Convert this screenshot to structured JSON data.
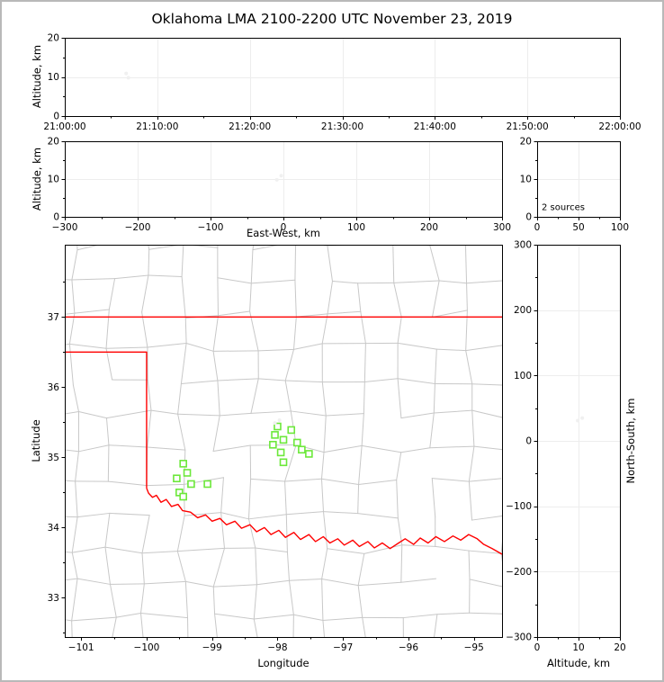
{
  "title": "Oklahoma LMA 2100-2200 UTC November 23, 2019",
  "colors": {
    "state_border": "#ff0000",
    "county_lines": "#c8c8c8",
    "stations": "#6ce83a",
    "sources": "#f0f0f0",
    "grid": "#ededed",
    "frame": "#000000"
  },
  "chart_data": [
    {
      "id": "time-height",
      "type": "scatter",
      "xlabel": "",
      "ylabel": "Altitude, km",
      "xlim": [
        "21:00:00",
        "22:00:00"
      ],
      "ylim": [
        0,
        20
      ],
      "x_tick_labels": [
        "21:00:00",
        "21:10:00",
        "21:20:00",
        "21:30:00",
        "21:40:00",
        "21:50:00",
        "22:00:00"
      ],
      "x_tick_seconds": [
        0,
        600,
        1200,
        1800,
        2400,
        3000,
        3600
      ],
      "x_minor_seconds": [
        300,
        900,
        1500,
        2100,
        2700,
        3300
      ],
      "y_tick_values": [
        0,
        10,
        20
      ],
      "y_tick_labels": [
        "0",
        "10",
        "20"
      ],
      "y_minor_values": [
        5,
        15
      ],
      "grid_x_seconds": [
        600,
        1200,
        1800,
        2400,
        3000
      ],
      "grid_y_values": [
        10
      ],
      "points": [
        {
          "time": "21:06:38",
          "seconds": 398,
          "altitude_km": 10.9
        },
        {
          "time": "21:06:52",
          "seconds": 412,
          "altitude_km": 9.8
        }
      ]
    },
    {
      "id": "east-west-height",
      "type": "scatter",
      "xlabel": "East-West, km",
      "ylabel": "Altitude, km",
      "xlim": [
        -300,
        300
      ],
      "ylim": [
        0,
        20
      ],
      "x_tick_values": [
        -300,
        -200,
        -100,
        0,
        100,
        200,
        300
      ],
      "x_tick_labels": [
        "−300",
        "−200",
        "−100",
        "0",
        "100",
        "200",
        "300"
      ],
      "x_minor_values": [
        -250,
        -150,
        -50,
        50,
        150,
        250
      ],
      "y_tick_values": [
        0,
        10,
        20
      ],
      "y_tick_labels": [
        "0",
        "10",
        "20"
      ],
      "y_minor_values": [
        5,
        15
      ],
      "grid_x_values": [
        -200,
        -100,
        0,
        100,
        200
      ],
      "grid_y_values": [
        10
      ],
      "points": [
        {
          "east_west_km": -3.0,
          "altitude_km": 10.9
        },
        {
          "east_west_km": -9.0,
          "altitude_km": 9.8
        }
      ]
    },
    {
      "id": "altitude-histogram",
      "type": "scatter",
      "annotation": "2 sources",
      "xlabel": "",
      "ylabel": "",
      "xlim": [
        0,
        100
      ],
      "ylim": [
        0,
        20
      ],
      "x_tick_values": [
        0,
        50,
        100
      ],
      "x_tick_labels": [
        "0",
        "50",
        "100"
      ],
      "x_minor_values": [
        25,
        75
      ],
      "y_tick_values": [
        0,
        10,
        20
      ],
      "y_tick_labels": [
        "0",
        "10",
        "20"
      ],
      "y_minor_values": [
        5,
        15
      ],
      "grid_x_values": [
        50
      ],
      "grid_y_values": [
        10
      ]
    },
    {
      "id": "plan-view-map",
      "type": "scatter",
      "xlabel": "Longitude",
      "ylabel": "Latitude",
      "xlim": [
        -101.25,
        -94.57
      ],
      "ylim": [
        32.44,
        38.03
      ],
      "x_tick_values": [
        -101,
        -100,
        -99,
        -98,
        -97,
        -96,
        -95
      ],
      "x_tick_labels": [
        "−101",
        "−100",
        "−99",
        "−98",
        "−97",
        "−96",
        "−95"
      ],
      "x_minor_values": [
        -100.5,
        -99.5,
        -98.5,
        -97.5,
        -96.5,
        -95.5
      ],
      "y_tick_values": [
        33,
        34,
        35,
        36,
        37
      ],
      "y_tick_labels": [
        "33",
        "34",
        "35",
        "36",
        "37"
      ],
      "y_minor_values": [
        32.5,
        33.5,
        34.5,
        35.5,
        36.5,
        37.5
      ],
      "stations_lonlat": [
        [
          -98.0,
          35.44
        ],
        [
          -97.79,
          35.39
        ],
        [
          -98.04,
          35.32
        ],
        [
          -97.91,
          35.25
        ],
        [
          -98.07,
          35.18
        ],
        [
          -97.7,
          35.21
        ],
        [
          -97.95,
          35.07
        ],
        [
          -97.63,
          35.11
        ],
        [
          -97.52,
          35.05
        ],
        [
          -97.91,
          34.93
        ],
        [
          -99.44,
          34.91
        ],
        [
          -99.38,
          34.78
        ],
        [
          -99.54,
          34.7
        ],
        [
          -99.32,
          34.62
        ],
        [
          -99.07,
          34.62
        ],
        [
          -99.5,
          34.5
        ],
        [
          -99.44,
          34.44
        ]
      ],
      "sources_lonlat": [
        [
          -97.97,
          35.53
        ],
        [
          -98.04,
          35.49
        ]
      ],
      "state_border_lonlat": {
        "kansas_line": [
          [
            -101.25,
            37.0
          ],
          [
            -94.57,
            37.0
          ]
        ],
        "panhandle": [
          [
            -101.25,
            36.5
          ],
          [
            -100.0,
            36.5
          ],
          [
            -100.0,
            34.56
          ]
        ],
        "red_river": [
          [
            -100.0,
            34.56
          ],
          [
            -99.97,
            34.49
          ],
          [
            -99.91,
            34.43
          ],
          [
            -99.85,
            34.46
          ],
          [
            -99.78,
            34.36
          ],
          [
            -99.7,
            34.4
          ],
          [
            -99.62,
            34.3
          ],
          [
            -99.52,
            34.33
          ],
          [
            -99.45,
            34.24
          ],
          [
            -99.33,
            34.22
          ],
          [
            -99.22,
            34.14
          ],
          [
            -99.1,
            34.18
          ],
          [
            -99.0,
            34.09
          ],
          [
            -98.88,
            34.13
          ],
          [
            -98.78,
            34.04
          ],
          [
            -98.65,
            34.09
          ],
          [
            -98.55,
            33.99
          ],
          [
            -98.42,
            34.04
          ],
          [
            -98.32,
            33.94
          ],
          [
            -98.2,
            34.0
          ],
          [
            -98.1,
            33.9
          ],
          [
            -97.98,
            33.96
          ],
          [
            -97.88,
            33.86
          ],
          [
            -97.75,
            33.93
          ],
          [
            -97.65,
            33.83
          ],
          [
            -97.52,
            33.9
          ],
          [
            -97.42,
            33.8
          ],
          [
            -97.3,
            33.87
          ],
          [
            -97.2,
            33.78
          ],
          [
            -97.08,
            33.84
          ],
          [
            -96.98,
            33.75
          ],
          [
            -96.85,
            33.82
          ],
          [
            -96.75,
            33.73
          ],
          [
            -96.62,
            33.8
          ],
          [
            -96.52,
            33.71
          ],
          [
            -96.4,
            33.78
          ],
          [
            -96.28,
            33.7
          ],
          [
            -96.15,
            33.78
          ],
          [
            -96.05,
            33.84
          ],
          [
            -95.92,
            33.76
          ],
          [
            -95.82,
            33.85
          ],
          [
            -95.7,
            33.78
          ],
          [
            -95.58,
            33.87
          ],
          [
            -95.45,
            33.8
          ],
          [
            -95.32,
            33.88
          ],
          [
            -95.2,
            33.82
          ],
          [
            -95.08,
            33.9
          ],
          [
            -94.95,
            33.84
          ],
          [
            -94.85,
            33.76
          ],
          [
            -94.72,
            33.7
          ],
          [
            -94.57,
            33.62
          ]
        ]
      }
    },
    {
      "id": "north-south-height",
      "type": "scatter",
      "xlabel": "Altitude, km",
      "ylabel": "North-South, km",
      "xlim": [
        0,
        20
      ],
      "ylim": [
        -300,
        300
      ],
      "x_tick_values": [
        0,
        10,
        20
      ],
      "x_tick_labels": [
        "0",
        "10",
        "20"
      ],
      "x_minor_values": [
        5,
        15
      ],
      "y_tick_values": [
        300,
        200,
        100,
        0,
        -100,
        -200,
        -300
      ],
      "y_tick_labels": [
        "300",
        "200",
        "100",
        "0",
        "−100",
        "−200",
        "−300"
      ],
      "y_minor_values": [
        250,
        150,
        50,
        -50,
        -150,
        -250
      ],
      "grid_x_values": [
        10
      ],
      "grid_y_values": [
        200,
        100,
        0,
        -100,
        -200
      ],
      "points": [
        {
          "altitude_km": 10.9,
          "north_south_km": 35.0
        },
        {
          "altitude_km": 9.8,
          "north_south_km": 31.0
        }
      ]
    }
  ]
}
